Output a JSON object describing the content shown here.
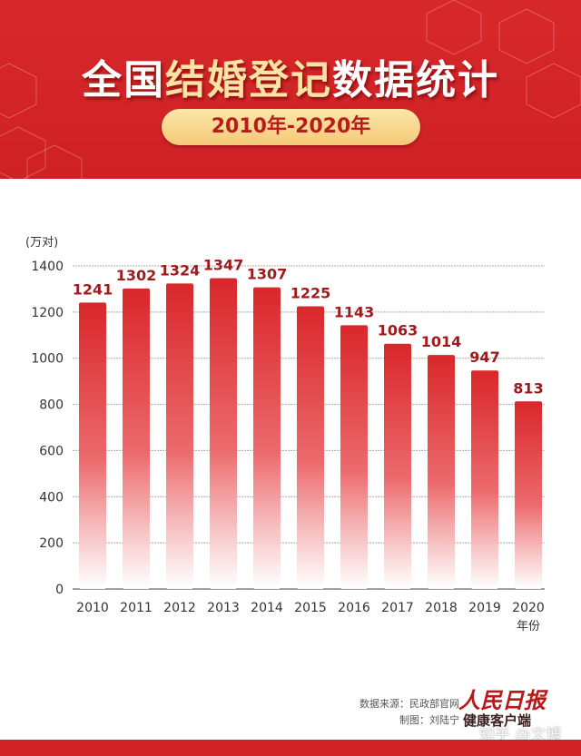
{
  "header": {
    "title_part1": "全国",
    "title_highlight": "结婚登记",
    "title_part2": "数据统计",
    "subtitle": "2010年-2020年"
  },
  "chart_data": {
    "type": "bar",
    "title": "全国结婚登记数据统计",
    "subtitle": "2010年-2020年",
    "ylabel": "(万对)",
    "xlabel": "年份",
    "categories": [
      "2010",
      "2011",
      "2012",
      "2013",
      "2014",
      "2015",
      "2016",
      "2017",
      "2018",
      "2019",
      "2020"
    ],
    "values": [
      1241,
      1302,
      1324,
      1347,
      1307,
      1225,
      1143,
      1063,
      1014,
      947,
      813
    ],
    "yticks": [
      0,
      200,
      400,
      600,
      800,
      1000,
      1200,
      1400
    ],
    "ylim": [
      0,
      1400
    ],
    "grid": true,
    "bar_color": "#d9272b"
  },
  "footer": {
    "source": "数据来源：民政部官网",
    "maker": "制图：刘陆宁",
    "logo_text": "人民日报",
    "logo_sub": "健康客户端",
    "watermark": "知乎 @文博"
  }
}
